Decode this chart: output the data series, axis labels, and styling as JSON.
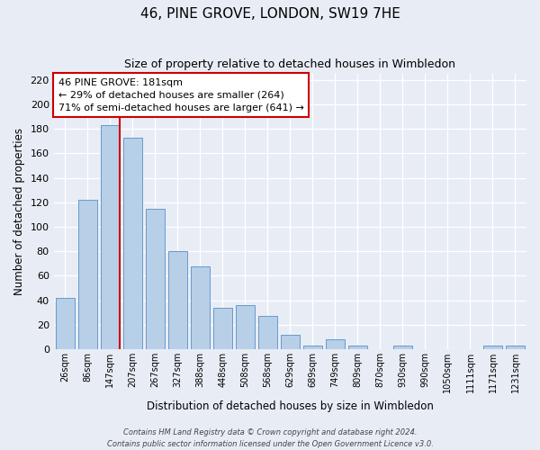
{
  "title": "46, PINE GROVE, LONDON, SW19 7HE",
  "subtitle": "Size of property relative to detached houses in Wimbledon",
  "xlabel": "Distribution of detached houses by size in Wimbledon",
  "ylabel": "Number of detached properties",
  "bar_labels": [
    "26sqm",
    "86sqm",
    "147sqm",
    "207sqm",
    "267sqm",
    "327sqm",
    "388sqm",
    "448sqm",
    "508sqm",
    "568sqm",
    "629sqm",
    "689sqm",
    "749sqm",
    "809sqm",
    "870sqm",
    "930sqm",
    "990sqm",
    "1050sqm",
    "1111sqm",
    "1171sqm",
    "1231sqm"
  ],
  "bar_values": [
    42,
    122,
    183,
    173,
    115,
    80,
    68,
    34,
    36,
    27,
    12,
    3,
    8,
    3,
    0,
    3,
    0,
    0,
    0,
    3,
    3
  ],
  "bar_color": "#b8cfe8",
  "bar_edge_color": "#6699cc",
  "bar_edge_width": 0.7,
  "background_color": "#e8edf5",
  "grid_color": "#ffffff",
  "ylim": [
    0,
    225
  ],
  "yticks": [
    0,
    20,
    40,
    60,
    80,
    100,
    120,
    140,
    160,
    180,
    200,
    220
  ],
  "property_size_label": "147sqm",
  "property_size_bar_index": 2,
  "red_line_color": "#cc0000",
  "annotation_text": "46 PINE GROVE: 181sqm\n← 29% of detached houses are smaller (264)\n71% of semi-detached houses are larger (641) →",
  "annotation_box_edge": "#cc0000",
  "footnote1": "Contains HM Land Registry data © Crown copyright and database right 2024.",
  "footnote2": "Contains public sector information licensed under the Open Government Licence v3.0."
}
